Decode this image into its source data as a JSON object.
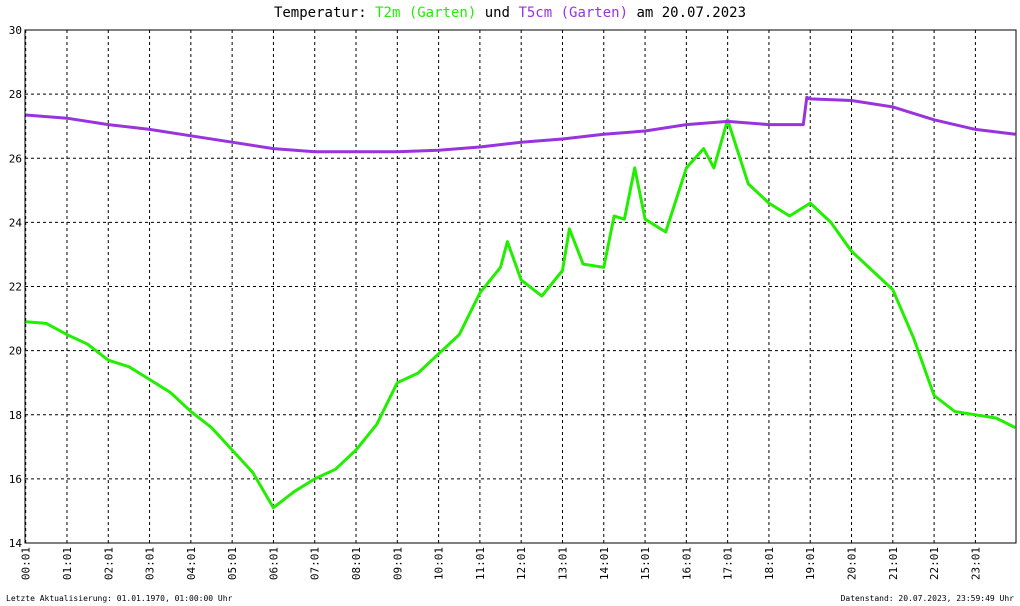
{
  "chart_data": {
    "type": "line",
    "title": "Temperatur:",
    "title_conj": "und",
    "title_date": "am 20.07.2023",
    "footer_left": "Letzte Aktualisierung: 01.01.1970, 01:00:00 Uhr",
    "footer_right": "Datenstand: 20.07.2023, 23:59:49 Uhr",
    "grid": true,
    "xlim": [
      "00:00",
      "24:00"
    ],
    "xticks": [
      "00:01",
      "01:01",
      "02:01",
      "03:01",
      "04:01",
      "05:01",
      "06:01",
      "07:01",
      "08:01",
      "09:01",
      "10:01",
      "11:01",
      "12:01",
      "13:01",
      "14:01",
      "15:01",
      "16:01",
      "17:01",
      "18:01",
      "19:01",
      "20:01",
      "21:01",
      "22:01",
      "23:01"
    ],
    "ylim": [
      14,
      30
    ],
    "yticks": [
      14,
      16,
      18,
      20,
      22,
      24,
      26,
      28,
      30
    ],
    "series": [
      {
        "name": "T2m (Garten)",
        "color": "#22ee00",
        "x": [
          "00:01",
          "00:31",
          "01:01",
          "01:31",
          "02:01",
          "02:31",
          "03:01",
          "03:31",
          "04:01",
          "04:31",
          "05:01",
          "05:31",
          "06:01",
          "06:31",
          "07:01",
          "07:31",
          "08:01",
          "08:31",
          "09:01",
          "09:31",
          "10:01",
          "10:31",
          "11:01",
          "11:31",
          "11:41",
          "12:01",
          "12:31",
          "13:01",
          "13:11",
          "13:31",
          "14:01",
          "14:16",
          "14:31",
          "14:46",
          "15:01",
          "15:31",
          "16:01",
          "16:26",
          "16:41",
          "17:01",
          "17:31",
          "18:01",
          "18:31",
          "19:01",
          "19:31",
          "20:01",
          "20:31",
          "21:01",
          "21:31",
          "22:01",
          "22:31",
          "23:01",
          "23:31",
          "23:59"
        ],
        "values": [
          20.9,
          20.85,
          20.5,
          20.2,
          19.7,
          19.5,
          19.1,
          18.7,
          18.1,
          17.6,
          16.9,
          16.2,
          15.1,
          15.6,
          16.0,
          16.3,
          16.9,
          17.7,
          19.0,
          19.3,
          19.9,
          20.5,
          21.8,
          22.6,
          23.4,
          22.2,
          21.7,
          22.5,
          23.8,
          22.7,
          22.6,
          24.2,
          24.1,
          25.7,
          24.1,
          23.7,
          25.7,
          26.3,
          25.7,
          27.2,
          25.2,
          24.6,
          24.2,
          24.6,
          24.0,
          23.1,
          22.5,
          21.9,
          20.4,
          18.6,
          18.1,
          18.0,
          17.9,
          17.6
        ]
      },
      {
        "name": "T5cm (Garten)",
        "color": "#9933dd",
        "x": [
          "00:01",
          "01:01",
          "02:01",
          "03:01",
          "04:01",
          "05:01",
          "06:01",
          "07:01",
          "08:01",
          "09:01",
          "10:01",
          "11:01",
          "12:01",
          "13:01",
          "14:01",
          "15:01",
          "16:01",
          "17:01",
          "18:01",
          "18:51",
          "18:56",
          "19:01",
          "20:01",
          "21:01",
          "22:01",
          "23:01",
          "23:59"
        ],
        "values": [
          27.35,
          27.25,
          27.05,
          26.9,
          26.7,
          26.5,
          26.3,
          26.2,
          26.2,
          26.2,
          26.25,
          26.35,
          26.5,
          26.6,
          26.75,
          26.85,
          27.05,
          27.15,
          27.05,
          27.05,
          27.9,
          27.85,
          27.8,
          27.6,
          27.2,
          26.9,
          26.75
        ]
      }
    ]
  }
}
